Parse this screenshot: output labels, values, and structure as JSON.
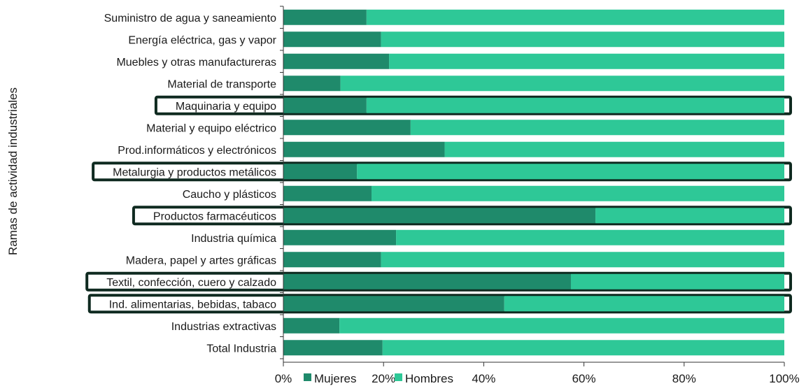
{
  "chart_data": {
    "type": "bar",
    "orientation": "horizontal",
    "stacked": true,
    "ylabel": "Ramas de actividad industriales",
    "categories": [
      "Suministro de agua y saneamiento",
      "Energía eléctrica, gas y vapor",
      "Muebles y otras manufactureras",
      "Material de transporte",
      "Maquinaria y equipo",
      "Material y equipo eléctrico",
      "Prod.informáticos y electrónicos",
      "Metalurgia y productos metálicos",
      "Caucho y plásticos",
      "Productos farmacéuticos",
      "Industria química",
      "Madera, papel y artes gráficas",
      "Textil, confección, cuero y calzado",
      "Ind. alimentarias, bebidas, tabaco",
      "Industrias extractivas",
      "Total Industria"
    ],
    "series": [
      {
        "name": "Mujeres",
        "color": "#1f8a6b",
        "values": [
          16.6,
          19.5,
          21.1,
          11.4,
          16.6,
          25.4,
          32.2,
          14.7,
          17.6,
          62.3,
          22.5,
          19.5,
          57.4,
          44.1,
          11.2,
          19.8
        ]
      },
      {
        "name": "Hombres",
        "color": "#2ec897",
        "values": [
          83.4,
          80.5,
          78.9,
          88.6,
          83.4,
          74.6,
          67.8,
          85.3,
          82.4,
          37.7,
          77.5,
          80.5,
          42.6,
          55.9,
          88.8,
          80.2
        ]
      }
    ],
    "xticks": [
      "0%",
      "20%",
      "40%",
      "60%",
      "80%",
      "100%"
    ],
    "xlim": [
      0,
      100
    ],
    "highlighted": [
      "Maquinaria y equipo",
      "Metalurgia y productos metálicos",
      "Productos farmacéuticos",
      "Textil, confección, cuero y calzado",
      "Ind. alimentarias, bebidas, tabaco"
    ],
    "legend": [
      {
        "name": "Mujeres",
        "color": "#1f8a6b"
      },
      {
        "name": "Hombres",
        "color": "#2ec897"
      }
    ],
    "highlight_color": "#0f2a20",
    "axis_color": "#333333"
  }
}
